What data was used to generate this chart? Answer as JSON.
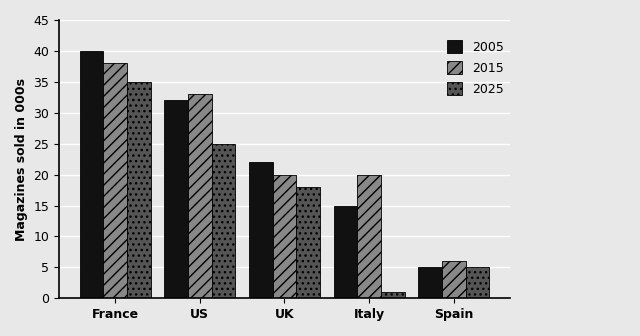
{
  "categories": [
    "France",
    "US",
    "UK",
    "Italy",
    "Spain"
  ],
  "series": {
    "2005": [
      40,
      32,
      22,
      15,
      5
    ],
    "2015": [
      38,
      33,
      20,
      20,
      6
    ],
    "2025": [
      35,
      25,
      18,
      1,
      5
    ]
  },
  "bar_colors": [
    "#111111",
    "#888888",
    "#555555"
  ],
  "bar_hatches": [
    "",
    "///",
    "..."
  ],
  "legend_labels": [
    "2005",
    "2015",
    "2025"
  ],
  "ylabel": "Magazines sold in 000s",
  "ylim": [
    0,
    45
  ],
  "yticks": [
    0,
    5,
    10,
    15,
    20,
    25,
    30,
    35,
    40,
    45
  ],
  "background_color": "#e8e8e8",
  "plot_bg_color": "#e8e8e8",
  "bar_width": 0.28,
  "axis_fontsize": 9,
  "legend_fontsize": 9,
  "tick_fontsize": 9
}
